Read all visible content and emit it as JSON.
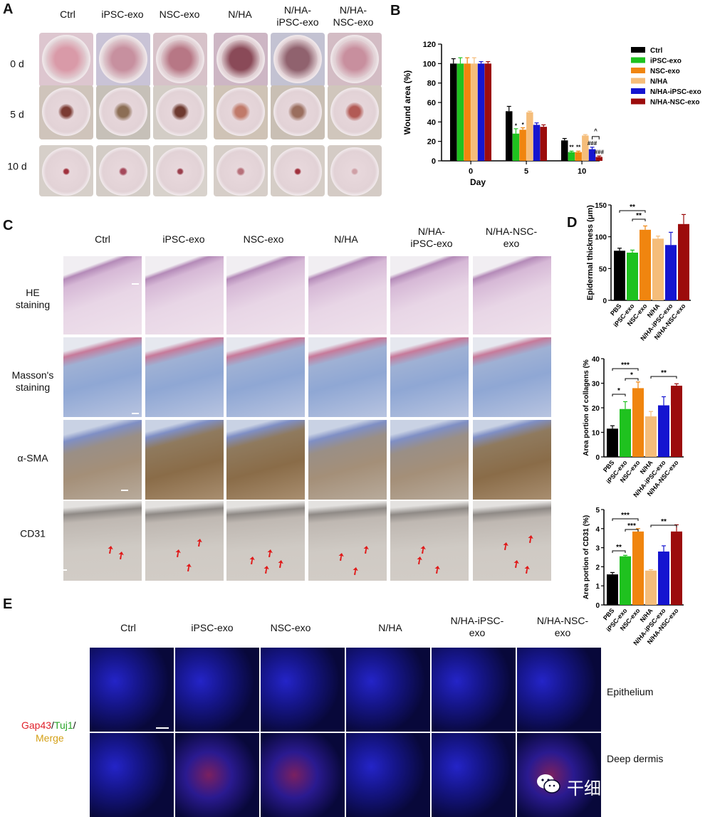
{
  "panels": {
    "a_letter": "A",
    "b_letter": "B",
    "c_letter": "C",
    "d_letter": "D",
    "e_letter": "E"
  },
  "panel_a": {
    "columns": [
      "Ctrl",
      "iPSC-exo",
      "NSC-exo",
      "N/HA",
      "N/HA-\niPSC-exo",
      "N/HA-\nNSC-exo"
    ],
    "rows": [
      "0 d",
      "5 d",
      "10 d"
    ]
  },
  "panel_c": {
    "columns": [
      "Ctrl",
      "iPSC-exo",
      "NSC-exo",
      "N/HA",
      "N/HA-\niPSC-exo",
      "N/HA-NSC-\nexo"
    ],
    "rows": [
      "HE\nstaining",
      "Masson's\nstaining",
      "α-SMA",
      "CD31"
    ]
  },
  "panel_e": {
    "columns": [
      "Ctrl",
      "iPSC-exo",
      "NSC-exo",
      "N/HA",
      "N/HA-iPSC-\nexo",
      "N/HA-NSC-\nexo"
    ],
    "rows": [
      "Epithelium",
      "Deep dermis"
    ],
    "legend_gap43": "Gap43",
    "legend_slash1": "/",
    "legend_tuj1": "Tuj1",
    "legend_slash2": "/",
    "legend_merge": "Merge",
    "color_gap43": "#e0202a",
    "color_tuj1": "#2aa52a",
    "color_merge": "#d4a017"
  },
  "watermark": {
    "text": "干细胞与外泌体",
    "icon": "wechat-icon"
  },
  "chart_data": [
    {
      "id": "B",
      "type": "bar",
      "xlabel": "Day",
      "ylabel": "Wound area (%)",
      "categories": [
        "0",
        "5",
        "10"
      ],
      "ylim": [
        0,
        120
      ],
      "yticks": [
        "0",
        "20",
        "40",
        "60",
        "80",
        "100",
        "120"
      ],
      "legend_position": "right",
      "series": [
        {
          "name": "Ctrl",
          "color": "#000000",
          "values": [
            100,
            51,
            21
          ],
          "errors": [
            5,
            5,
            2
          ]
        },
        {
          "name": "iPSC-exo",
          "color": "#1fc21f",
          "values": [
            100,
            28,
            9
          ],
          "errors": [
            6,
            5,
            1
          ]
        },
        {
          "name": "NSC-exo",
          "color": "#f0850f",
          "values": [
            100,
            32,
            9
          ],
          "errors": [
            6,
            2,
            1
          ]
        },
        {
          "name": "N/HA",
          "color": "#f5bd7a",
          "values": [
            100,
            50,
            26
          ],
          "errors": [
            6,
            1,
            1
          ]
        },
        {
          "name": "N/HA-iPSC-exo",
          "color": "#1515d0",
          "values": [
            100,
            37,
            12
          ],
          "errors": [
            2,
            2,
            2
          ]
        },
        {
          "name": "N/HA-NSC-exo",
          "color": "#9c0c0c",
          "values": [
            100,
            35,
            4
          ],
          "errors": [
            2,
            2,
            1
          ]
        }
      ],
      "annotations": [
        "*",
        "*",
        "**",
        "**",
        "###",
        "###",
        "^"
      ]
    },
    {
      "id": "D1",
      "type": "bar",
      "ylabel": "Epidermal thickness (μm)",
      "categories": [
        "PBS",
        "iPSC-exo",
        "NSC-exo",
        "N/HA",
        "N/HA-iPSC-exo",
        "N/HA-NSC-exo"
      ],
      "colors": [
        "#000000",
        "#1fc21f",
        "#f0850f",
        "#f5bd7a",
        "#1515d0",
        "#9c0c0c"
      ],
      "values": [
        78,
        75,
        111,
        97,
        87,
        120
      ],
      "errors": [
        4,
        4,
        6,
        4,
        20,
        15
      ],
      "ylim": [
        0,
        150
      ],
      "yticks": [
        "0",
        "50",
        "100",
        "150"
      ],
      "significance": [
        {
          "from": 0,
          "to": 2,
          "label": "**"
        },
        {
          "from": 1,
          "to": 2,
          "label": "**"
        }
      ]
    },
    {
      "id": "D2",
      "type": "bar",
      "ylabel": "Area portion of collagens (%",
      "categories": [
        "PBS",
        "iPSC-exo",
        "NSC-exo",
        "N/HA",
        "N/HA-iPSC-exo",
        "N/HA-NSC-exo"
      ],
      "colors": [
        "#000000",
        "#1fc21f",
        "#f0850f",
        "#f5bd7a",
        "#1515d0",
        "#9c0c0c"
      ],
      "values": [
        11.5,
        19.5,
        28,
        16.5,
        21,
        29
      ],
      "errors": [
        1.2,
        3,
        2.5,
        2,
        3.5,
        0.8
      ],
      "ylim": [
        0,
        40
      ],
      "yticks": [
        "0",
        "10",
        "20",
        "30",
        "40"
      ],
      "significance": [
        {
          "from": 0,
          "to": 1,
          "label": "*"
        },
        {
          "from": 0,
          "to": 2,
          "label": "***"
        },
        {
          "from": 1,
          "to": 2,
          "label": "*"
        },
        {
          "from": 3,
          "to": 5,
          "label": "**"
        }
      ]
    },
    {
      "id": "D3",
      "type": "bar",
      "ylabel": "Area portion of CD31 (%)",
      "categories": [
        "PBS",
        "iPSC-exo",
        "NSC-exo",
        "N/HA",
        "N/HA-iPSC-exo",
        "N/HA-NSC-exo"
      ],
      "colors": [
        "#000000",
        "#1fc21f",
        "#f0850f",
        "#f5bd7a",
        "#1515d0",
        "#9c0c0c"
      ],
      "values": [
        1.6,
        2.55,
        3.85,
        1.8,
        2.8,
        3.85
      ],
      "errors": [
        0.1,
        0.05,
        0.15,
        0.05,
        0.3,
        0.35
      ],
      "ylim": [
        0,
        5
      ],
      "yticks": [
        "0",
        "1",
        "2",
        "3",
        "4",
        "5"
      ],
      "significance": [
        {
          "from": 0,
          "to": 1,
          "label": "**"
        },
        {
          "from": 0,
          "to": 2,
          "label": "***"
        },
        {
          "from": 1,
          "to": 2,
          "label": "***"
        },
        {
          "from": 3,
          "to": 5,
          "label": "**"
        }
      ]
    }
  ]
}
